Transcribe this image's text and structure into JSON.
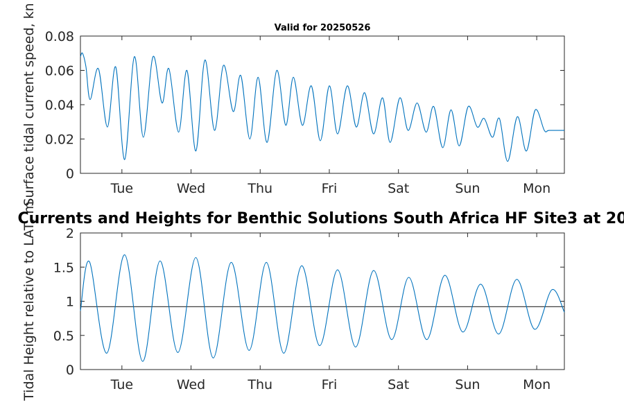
{
  "chart_data": [
    {
      "type": "line",
      "title": "Valid for 20250526",
      "xlabel": "",
      "ylabel": "Surface tidal current speed, kn",
      "ylim": [
        0,
        0.08
      ],
      "yticks": [
        "0",
        "0.02",
        "0.04",
        "0.06",
        "0.08"
      ],
      "xlim": [
        0,
        7
      ],
      "xticks": [
        {
          "x": 0.6,
          "label": "Tue"
        },
        {
          "x": 1.6,
          "label": "Wed"
        },
        {
          "x": 2.6,
          "label": "Thu"
        },
        {
          "x": 3.6,
          "label": "Fri"
        },
        {
          "x": 4.6,
          "label": "Sat"
        },
        {
          "x": 5.6,
          "label": "Sun"
        },
        {
          "x": 6.6,
          "label": "Mon"
        }
      ],
      "grid": false,
      "series": [
        {
          "color": "#0072bd",
          "points": [
            [
              0.0,
              0.068
            ],
            [
              0.03,
              0.07
            ],
            [
              0.08,
              0.062
            ],
            [
              0.14,
              0.043
            ],
            [
              0.26,
              0.061
            ],
            [
              0.39,
              0.027
            ],
            [
              0.51,
              0.062
            ],
            [
              0.64,
              0.008
            ],
            [
              0.78,
              0.068
            ],
            [
              0.91,
              0.021
            ],
            [
              1.05,
              0.068
            ],
            [
              1.18,
              0.041
            ],
            [
              1.28,
              0.061
            ],
            [
              1.42,
              0.024
            ],
            [
              1.54,
              0.06
            ],
            [
              1.67,
              0.013
            ],
            [
              1.8,
              0.066
            ],
            [
              1.94,
              0.025
            ],
            [
              2.07,
              0.063
            ],
            [
              2.21,
              0.036
            ],
            [
              2.32,
              0.057
            ],
            [
              2.45,
              0.02
            ],
            [
              2.57,
              0.056
            ],
            [
              2.7,
              0.018
            ],
            [
              2.84,
              0.06
            ],
            [
              2.97,
              0.028
            ],
            [
              3.08,
              0.056
            ],
            [
              3.21,
              0.028
            ],
            [
              3.34,
              0.051
            ],
            [
              3.47,
              0.019
            ],
            [
              3.6,
              0.051
            ],
            [
              3.72,
              0.023
            ],
            [
              3.86,
              0.051
            ],
            [
              3.99,
              0.027
            ],
            [
              4.11,
              0.047
            ],
            [
              4.24,
              0.023
            ],
            [
              4.37,
              0.044
            ],
            [
              4.48,
              0.018
            ],
            [
              4.62,
              0.044
            ],
            [
              4.74,
              0.025
            ],
            [
              4.87,
              0.041
            ],
            [
              5.0,
              0.024
            ],
            [
              5.11,
              0.039
            ],
            [
              5.24,
              0.015
            ],
            [
              5.36,
              0.037
            ],
            [
              5.48,
              0.016
            ],
            [
              5.61,
              0.039
            ],
            [
              5.74,
              0.027
            ],
            [
              5.84,
              0.032
            ],
            [
              5.96,
              0.021
            ],
            [
              6.06,
              0.032
            ],
            [
              6.18,
              0.007
            ],
            [
              6.32,
              0.033
            ],
            [
              6.45,
              0.013
            ],
            [
              6.58,
              0.037
            ],
            [
              6.71,
              0.025
            ],
            [
              6.78,
              0.025
            ],
            [
              7.0,
              0.025
            ]
          ]
        }
      ]
    },
    {
      "type": "line",
      "title": "Currents and Heights for Benthic Solutions South Africa HF Site3 at 20",
      "xlabel": "",
      "ylabel": "Tidal Height relative to LAT, m",
      "ylim": [
        0,
        2
      ],
      "yticks": [
        "0",
        "0.5",
        "1",
        "1.5",
        "2"
      ],
      "xlim": [
        0,
        7
      ],
      "xticks": [
        {
          "x": 0.6,
          "label": "Tue"
        },
        {
          "x": 1.6,
          "label": "Wed"
        },
        {
          "x": 2.6,
          "label": "Thu"
        },
        {
          "x": 3.6,
          "label": "Fri"
        },
        {
          "x": 4.6,
          "label": "Sat"
        },
        {
          "x": 5.6,
          "label": "Sun"
        },
        {
          "x": 6.6,
          "label": "Mon"
        }
      ],
      "grid": false,
      "reference_line": {
        "y": 0.92,
        "color": "#404040"
      },
      "series": [
        {
          "color": "#0072bd",
          "points": [
            [
              0.0,
              0.86
            ],
            [
              0.13,
              1.58
            ],
            [
              0.38,
              0.24
            ],
            [
              0.64,
              1.68
            ],
            [
              0.9,
              0.12
            ],
            [
              1.15,
              1.59
            ],
            [
              1.41,
              0.25
            ],
            [
              1.67,
              1.64
            ],
            [
              1.92,
              0.17
            ],
            [
              2.18,
              1.57
            ],
            [
              2.44,
              0.28
            ],
            [
              2.69,
              1.57
            ],
            [
              2.94,
              0.24
            ],
            [
              3.2,
              1.52
            ],
            [
              3.46,
              0.35
            ],
            [
              3.72,
              1.46
            ],
            [
              3.98,
              0.33
            ],
            [
              4.24,
              1.45
            ],
            [
              4.5,
              0.44
            ],
            [
              4.75,
              1.35
            ],
            [
              5.01,
              0.44
            ],
            [
              5.27,
              1.38
            ],
            [
              5.53,
              0.55
            ],
            [
              5.79,
              1.25
            ],
            [
              6.05,
              0.52
            ],
            [
              6.31,
              1.32
            ],
            [
              6.57,
              0.59
            ],
            [
              6.82,
              1.17
            ],
            [
              7.0,
              0.84
            ]
          ]
        }
      ]
    }
  ]
}
